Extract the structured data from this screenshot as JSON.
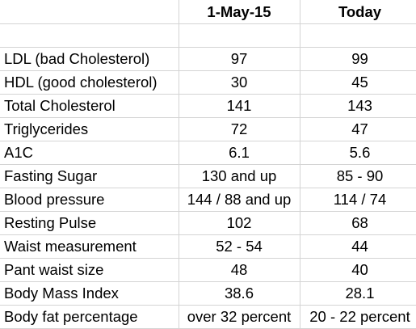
{
  "header": {
    "col_label": "",
    "col_a": "1-May-15",
    "col_b": "Today"
  },
  "rows": [
    {
      "label": "LDL (bad Cholesterol)",
      "a": "97",
      "b": "99"
    },
    {
      "label": "HDL (good cholesterol)",
      "a": "30",
      "b": "45"
    },
    {
      "label": "Total Cholesterol",
      "a": "141",
      "b": "143"
    },
    {
      "label": "Triglycerides",
      "a": "72",
      "b": "47"
    },
    {
      "label": "A1C",
      "a": "6.1",
      "b": "5.6"
    },
    {
      "label": "Fasting Sugar",
      "a": "130 and up",
      "b": "85 - 90"
    },
    {
      "label": "Blood pressure",
      "a": "144 / 88 and up",
      "b": "114 / 74"
    },
    {
      "label": "Resting Pulse",
      "a": "102",
      "b": "68"
    },
    {
      "label": "Waist measurement",
      "a": "52 - 54",
      "b": "44"
    },
    {
      "label": "Pant waist size",
      "a": "48",
      "b": "40"
    },
    {
      "label": "Body Mass Index",
      "a": "38.6",
      "b": "28.1"
    },
    {
      "label": "Body fat percentage",
      "a": "over 32 percent",
      "b": "20 - 22 percent"
    }
  ],
  "colors": {
    "gridline": "#d4d4d4",
    "text": "#000000",
    "background": "#ffffff"
  }
}
